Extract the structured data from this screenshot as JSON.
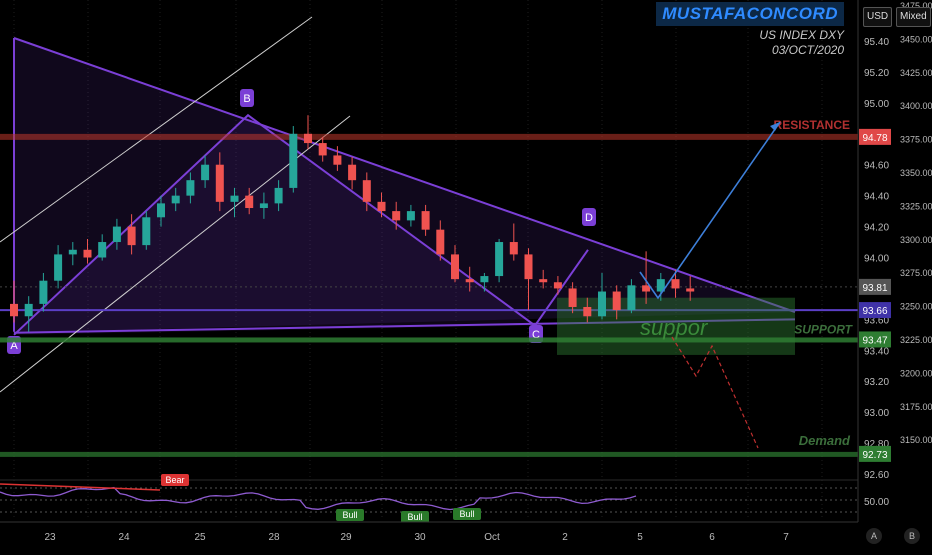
{
  "header": {
    "brand": "MUSTAFACONCORD",
    "subtitle": "US INDEX DXY",
    "date": "03/OCT/2020"
  },
  "toolbar": {
    "currency": "USD",
    "scale_mode": "Mixed"
  },
  "corner_buttons": {
    "auto": "A",
    "log": "B"
  },
  "colors": {
    "background": "#000000",
    "up_candle": "#26a69a",
    "down_candle": "#ef5350",
    "pattern": "#7b3fd6",
    "resistance": "#c0392b",
    "support": "#2e7d32",
    "projection": "#3d7fd9"
  },
  "chart_data": {
    "type": "candlestick",
    "title": "US INDEX DXY",
    "y_axis": {
      "range": [
        92.5,
        95.5
      ],
      "ticks": [
        "95.40",
        "95.20",
        "95.00",
        "94.80",
        "94.60",
        "94.40",
        "94.20",
        "94.00",
        "93.80",
        "93.60",
        "93.40",
        "93.20",
        "93.00",
        "92.80",
        "92.60"
      ]
    },
    "y2_axis": {
      "label_units": "points",
      "ticks": [
        "3475.00",
        "3450.00",
        "3425.00",
        "3400.00",
        "3375.00",
        "3350.00",
        "3325.00",
        "3300.00",
        "3275.00",
        "3250.00",
        "3225.00",
        "3200.00",
        "3175.00",
        "3150.00"
      ]
    },
    "x_axis": {
      "ticks": [
        "23",
        "24",
        "25",
        "28",
        "29",
        "30",
        "Oct",
        "2",
        "5",
        "6",
        "7"
      ]
    },
    "candles": [
      [
        0.0,
        93.7,
        93.85,
        93.58,
        93.62
      ],
      [
        0.2,
        93.62,
        93.75,
        93.52,
        93.7
      ],
      [
        0.4,
        93.7,
        93.9,
        93.65,
        93.85
      ],
      [
        0.6,
        93.85,
        94.08,
        93.8,
        94.02
      ],
      [
        0.8,
        94.02,
        94.1,
        93.95,
        94.05
      ],
      [
        1.0,
        94.05,
        94.12,
        93.96,
        94.0
      ],
      [
        1.2,
        94.0,
        94.15,
        93.98,
        94.1
      ],
      [
        1.4,
        94.1,
        94.25,
        94.05,
        94.2
      ],
      [
        1.6,
        94.2,
        94.28,
        94.02,
        94.08
      ],
      [
        1.8,
        94.08,
        94.3,
        94.05,
        94.26
      ],
      [
        2.0,
        94.26,
        94.4,
        94.2,
        94.35
      ],
      [
        2.2,
        94.35,
        94.45,
        94.3,
        94.4
      ],
      [
        2.4,
        94.4,
        94.55,
        94.35,
        94.5
      ],
      [
        2.6,
        94.5,
        94.66,
        94.45,
        94.6
      ],
      [
        2.8,
        94.6,
        94.68,
        94.3,
        94.36
      ],
      [
        3.0,
        94.36,
        94.45,
        94.26,
        94.4
      ],
      [
        3.2,
        94.4,
        94.45,
        94.28,
        94.32
      ],
      [
        3.4,
        94.32,
        94.42,
        94.25,
        94.35
      ],
      [
        3.6,
        94.35,
        94.5,
        94.3,
        94.45
      ],
      [
        3.8,
        94.45,
        94.85,
        94.42,
        94.8
      ],
      [
        4.0,
        94.8,
        94.92,
        94.7,
        94.74
      ],
      [
        4.2,
        94.74,
        94.78,
        94.62,
        94.66
      ],
      [
        4.4,
        94.66,
        94.72,
        94.56,
        94.6
      ],
      [
        4.6,
        94.6,
        94.65,
        94.44,
        94.5
      ],
      [
        4.8,
        94.5,
        94.55,
        94.3,
        94.36
      ],
      [
        5.0,
        94.36,
        94.42,
        94.26,
        94.3
      ],
      [
        5.2,
        94.3,
        94.36,
        94.18,
        94.24
      ],
      [
        5.4,
        94.24,
        94.34,
        94.2,
        94.3
      ],
      [
        5.6,
        94.3,
        94.34,
        94.14,
        94.18
      ],
      [
        5.8,
        94.18,
        94.24,
        93.98,
        94.02
      ],
      [
        6.0,
        94.02,
        94.08,
        93.84,
        93.86
      ],
      [
        6.2,
        93.86,
        93.94,
        93.78,
        93.84
      ],
      [
        6.4,
        93.84,
        93.9,
        93.78,
        93.88
      ],
      [
        6.6,
        93.88,
        94.12,
        93.84,
        94.1
      ],
      [
        6.8,
        94.1,
        94.22,
        93.98,
        94.02
      ],
      [
        7.0,
        94.02,
        94.06,
        93.66,
        93.86
      ],
      [
        7.2,
        93.86,
        93.92,
        93.8,
        93.84
      ],
      [
        7.4,
        93.84,
        93.88,
        93.76,
        93.8
      ],
      [
        7.6,
        93.8,
        93.84,
        93.64,
        93.68
      ],
      [
        7.8,
        93.68,
        93.74,
        93.58,
        93.62
      ],
      [
        8.0,
        93.62,
        93.9,
        93.6,
        93.78
      ],
      [
        8.2,
        93.78,
        93.82,
        93.6,
        93.66
      ],
      [
        8.4,
        93.66,
        93.86,
        93.64,
        93.82
      ],
      [
        8.6,
        93.82,
        94.04,
        93.7,
        93.78
      ],
      [
        8.8,
        93.78,
        93.9,
        93.72,
        93.86
      ],
      [
        9.0,
        93.86,
        93.92,
        93.74,
        93.8
      ],
      [
        9.2,
        93.8,
        93.88,
        93.72,
        93.78
      ]
    ],
    "annotations": {
      "points": [
        {
          "label": "A",
          "x": 0.0,
          "y": 93.52
        },
        {
          "label": "B",
          "x": 3.9,
          "y": 94.92
        },
        {
          "label": "C",
          "x": 7.8,
          "y": 93.5
        },
        {
          "label": "D",
          "x": 8.45,
          "y": 94.05
        }
      ],
      "levels": [
        {
          "label": "RESISTANCE",
          "value": 94.78,
          "badge": "94.78"
        },
        {
          "label": "SUPPORT",
          "value": 93.47,
          "badge": "93.47"
        },
        {
          "label": "Demand",
          "value": 92.73,
          "badge": "92.73"
        }
      ],
      "price_badges": [
        "93.81",
        "93.66"
      ],
      "support_zone_label": "suppor"
    },
    "indicator": {
      "type": "oscillator",
      "tick": "50.00",
      "labels": [
        "Bear",
        "Bull",
        "Bull",
        "Bull"
      ]
    }
  }
}
